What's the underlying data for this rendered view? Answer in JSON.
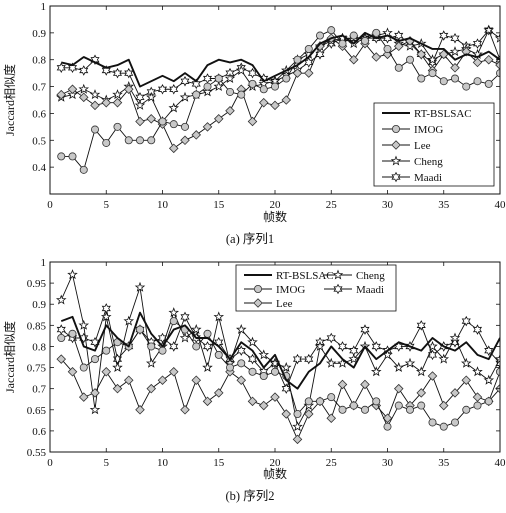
{
  "chart_data": [
    {
      "type": "line",
      "caption": "(a) 序列1",
      "xlabel": "帧数",
      "ylabel": "Jaccard相似度",
      "xlim": [
        0,
        40
      ],
      "ylim": [
        0.3,
        1
      ],
      "xticks": [
        0,
        5,
        10,
        15,
        20,
        25,
        30,
        35,
        40
      ],
      "yticks": [
        0.4,
        0.5,
        0.6,
        0.7,
        0.8,
        0.9,
        1
      ],
      "x": [
        1,
        2,
        3,
        4,
        5,
        6,
        7,
        8,
        9,
        10,
        11,
        12,
        13,
        14,
        15,
        16,
        17,
        18,
        19,
        20,
        21,
        22,
        23,
        24,
        25,
        26,
        27,
        28,
        29,
        30,
        31,
        32,
        33,
        34,
        35,
        36,
        37,
        38,
        39,
        40
      ],
      "legend": {
        "position": "bottom-right",
        "columns": 1
      },
      "series": [
        {
          "name": "RT-BSLSAC",
          "marker": "none",
          "values": [
            0.79,
            0.78,
            0.81,
            0.79,
            0.77,
            0.78,
            0.8,
            0.7,
            0.72,
            0.74,
            0.72,
            0.75,
            0.72,
            0.78,
            0.8,
            0.79,
            0.8,
            0.78,
            0.72,
            0.74,
            0.76,
            0.78,
            0.81,
            0.86,
            0.88,
            0.89,
            0.86,
            0.9,
            0.88,
            0.89,
            0.87,
            0.88,
            0.86,
            0.84,
            0.84,
            0.8,
            0.82,
            0.81,
            0.83,
            0.8
          ]
        },
        {
          "name": "IMOG",
          "marker": "circle",
          "values": [
            0.44,
            0.44,
            0.39,
            0.54,
            0.49,
            0.55,
            0.5,
            0.5,
            0.5,
            0.57,
            0.56,
            0.55,
            0.67,
            0.7,
            0.73,
            0.68,
            0.67,
            0.71,
            0.69,
            0.7,
            0.73,
            0.8,
            0.84,
            0.89,
            0.91,
            0.86,
            0.89,
            0.87,
            0.9,
            0.84,
            0.77,
            0.8,
            0.73,
            0.75,
            0.72,
            0.73,
            0.7,
            0.72,
            0.71,
            0.75
          ]
        },
        {
          "name": "Lee",
          "marker": "diamond",
          "values": [
            0.67,
            0.69,
            0.66,
            0.63,
            0.64,
            0.64,
            0.69,
            0.57,
            0.58,
            0.56,
            0.47,
            0.5,
            0.52,
            0.55,
            0.58,
            0.61,
            0.69,
            0.57,
            0.64,
            0.63,
            0.65,
            0.75,
            0.75,
            0.85,
            0.88,
            0.85,
            0.8,
            0.86,
            0.81,
            0.82,
            0.85,
            0.87,
            0.82,
            0.76,
            0.82,
            0.77,
            0.83,
            0.79,
            0.8,
            0.78
          ]
        },
        {
          "name": "Cheng",
          "marker": "star",
          "values": [
            0.66,
            0.67,
            0.69,
            0.67,
            0.65,
            0.67,
            0.7,
            0.63,
            0.66,
            0.57,
            0.62,
            0.66,
            0.67,
            0.68,
            0.7,
            0.73,
            0.76,
            0.7,
            0.71,
            0.72,
            0.76,
            0.8,
            0.82,
            0.85,
            0.87,
            0.88,
            0.86,
            0.88,
            0.89,
            0.9,
            0.86,
            0.85,
            0.86,
            0.8,
            0.82,
            0.83,
            0.84,
            0.82,
            0.91,
            0.88
          ]
        },
        {
          "name": "Maadi",
          "marker": "hexagram",
          "values": [
            0.77,
            0.77,
            0.76,
            0.8,
            0.76,
            0.75,
            0.75,
            0.66,
            0.68,
            0.69,
            0.69,
            0.72,
            0.71,
            0.73,
            0.73,
            0.75,
            0.77,
            0.75,
            0.73,
            0.72,
            0.74,
            0.76,
            0.79,
            0.82,
            0.86,
            0.88,
            0.88,
            0.88,
            0.88,
            0.88,
            0.89,
            0.86,
            0.82,
            0.79,
            0.89,
            0.88,
            0.85,
            0.86,
            0.91,
            0.8
          ]
        }
      ]
    },
    {
      "type": "line",
      "caption": "(b) 序列2",
      "xlabel": "帧数",
      "ylabel": "Jaccard相似度",
      "xlim": [
        0,
        40
      ],
      "ylim": [
        0.55,
        1
      ],
      "xticks": [
        0,
        5,
        10,
        15,
        20,
        25,
        30,
        35,
        40
      ],
      "yticks": [
        0.55,
        0.6,
        0.65,
        0.7,
        0.75,
        0.8,
        0.85,
        0.9,
        0.95,
        1
      ],
      "x": [
        1,
        2,
        3,
        4,
        5,
        6,
        7,
        8,
        9,
        10,
        11,
        12,
        13,
        14,
        15,
        16,
        17,
        18,
        19,
        20,
        21,
        22,
        23,
        24,
        25,
        26,
        27,
        28,
        29,
        30,
        31,
        32,
        33,
        34,
        35,
        36,
        37,
        38,
        39,
        40
      ],
      "legend": {
        "position": "top",
        "columns": 2
      },
      "series": [
        {
          "name": "RT-BSLSAC",
          "marker": "none",
          "values": [
            0.86,
            0.87,
            0.8,
            0.79,
            0.85,
            0.82,
            0.8,
            0.88,
            0.83,
            0.8,
            0.84,
            0.85,
            0.82,
            0.82,
            0.8,
            0.77,
            0.81,
            0.79,
            0.75,
            0.78,
            0.72,
            0.7,
            0.74,
            0.76,
            0.8,
            0.77,
            0.75,
            0.8,
            0.77,
            0.79,
            0.81,
            0.8,
            0.79,
            0.82,
            0.8,
            0.79,
            0.81,
            0.78,
            0.77,
            0.82
          ]
        },
        {
          "name": "IMOG",
          "marker": "circle",
          "values": [
            0.82,
            0.83,
            0.75,
            0.77,
            0.79,
            0.81,
            0.8,
            0.84,
            0.8,
            0.79,
            0.86,
            0.84,
            0.8,
            0.83,
            0.78,
            0.75,
            0.76,
            0.74,
            0.73,
            0.74,
            0.73,
            0.64,
            0.67,
            0.67,
            0.68,
            0.65,
            0.66,
            0.65,
            0.67,
            0.61,
            0.66,
            0.65,
            0.66,
            0.62,
            0.61,
            0.62,
            0.65,
            0.66,
            0.67,
            0.74
          ]
        },
        {
          "name": "Lee",
          "marker": "diamond",
          "values": [
            0.77,
            0.74,
            0.68,
            0.69,
            0.74,
            0.7,
            0.72,
            0.65,
            0.7,
            0.72,
            0.74,
            0.65,
            0.72,
            0.67,
            0.69,
            0.74,
            0.72,
            0.67,
            0.66,
            0.68,
            0.64,
            0.58,
            0.64,
            0.67,
            0.63,
            0.71,
            0.66,
            0.71,
            0.66,
            0.63,
            0.7,
            0.66,
            0.69,
            0.73,
            0.66,
            0.69,
            0.72,
            0.68,
            0.67,
            0.7
          ]
        },
        {
          "name": "Cheng",
          "marker": "star",
          "values": [
            0.91,
            0.97,
            0.85,
            0.65,
            0.87,
            0.75,
            0.86,
            0.94,
            0.76,
            0.8,
            0.88,
            0.82,
            0.84,
            0.75,
            0.87,
            0.76,
            0.84,
            0.81,
            0.78,
            0.76,
            0.75,
            0.61,
            0.66,
            0.8,
            0.76,
            0.76,
            0.77,
            0.8,
            0.74,
            0.78,
            0.75,
            0.76,
            0.74,
            0.8,
            0.77,
            0.82,
            0.76,
            0.74,
            0.72,
            0.77
          ]
        },
        {
          "name": "Maadi",
          "marker": "hexagram",
          "values": [
            0.84,
            0.82,
            0.82,
            0.81,
            0.89,
            0.77,
            0.8,
            0.84,
            0.81,
            0.82,
            0.8,
            0.87,
            0.82,
            0.8,
            0.81,
            0.77,
            0.79,
            0.77,
            0.74,
            0.76,
            0.7,
            0.77,
            0.77,
            0.81,
            0.82,
            0.8,
            0.79,
            0.84,
            0.8,
            0.79,
            0.8,
            0.8,
            0.85,
            0.78,
            0.8,
            0.81,
            0.86,
            0.84,
            0.79,
            0.76
          ]
        }
      ]
    }
  ]
}
